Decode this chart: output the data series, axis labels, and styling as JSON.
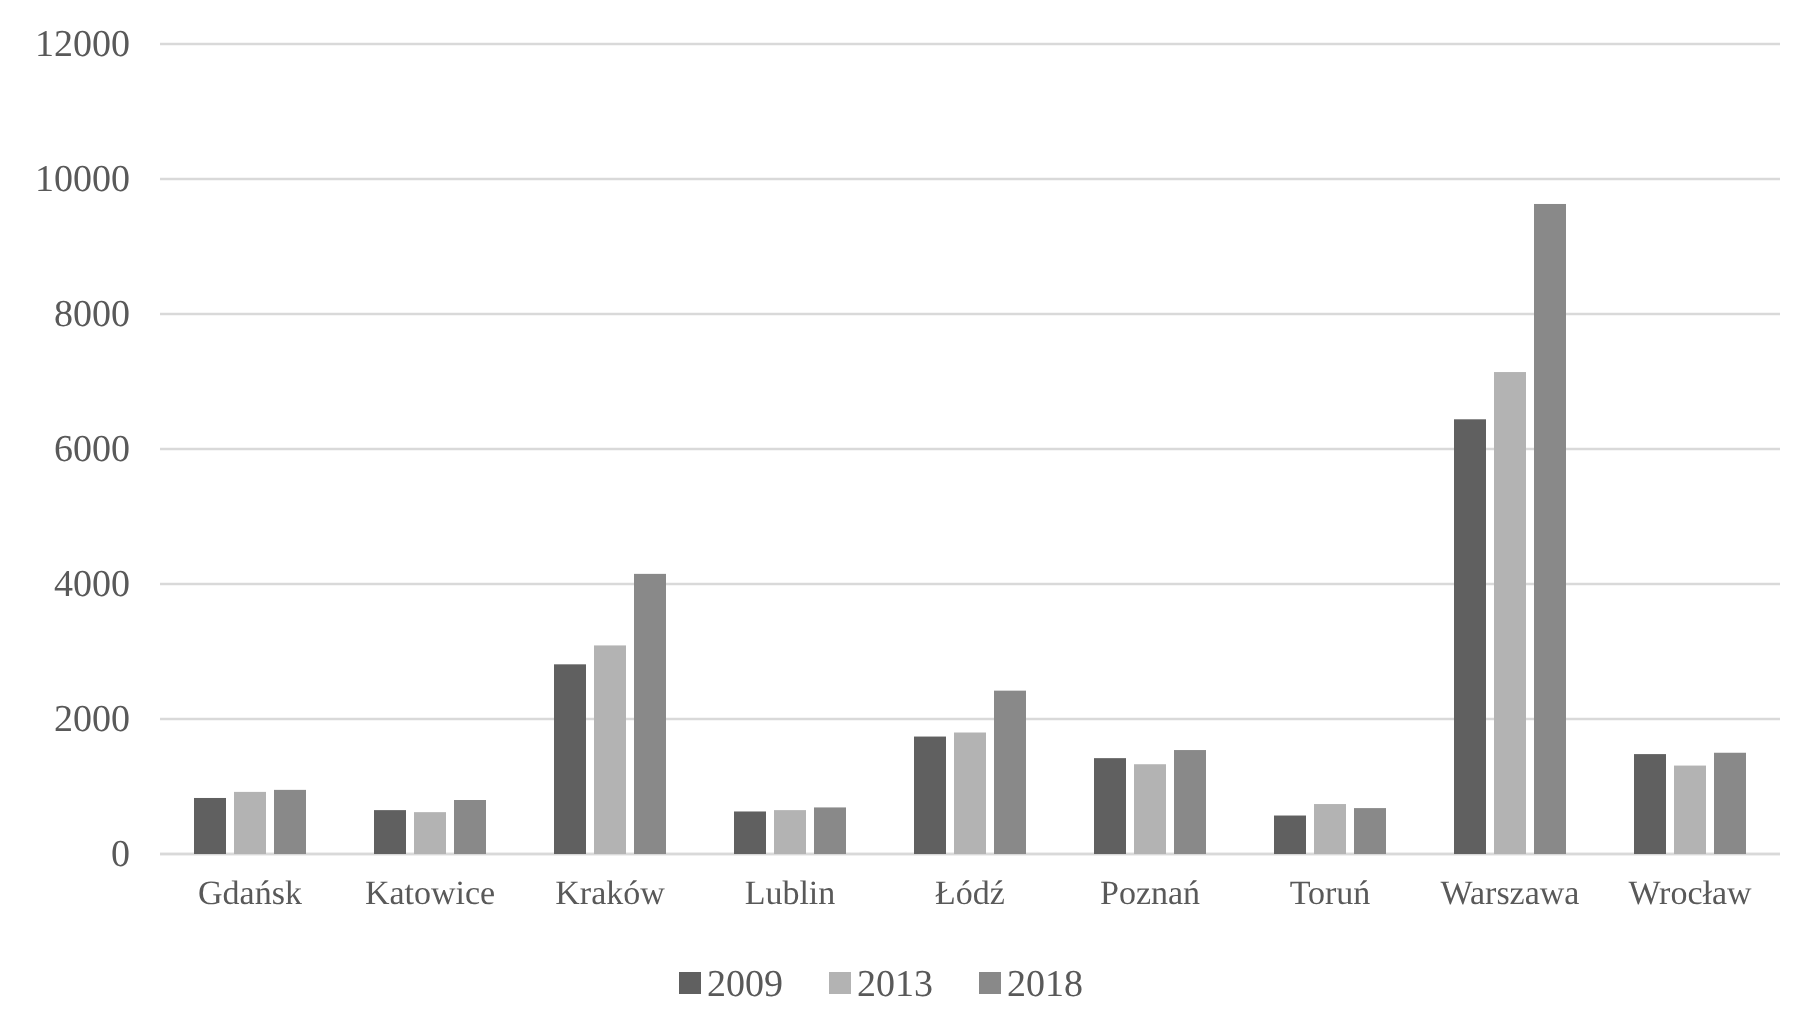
{
  "chart_data": {
    "type": "bar",
    "categories": [
      "Gdańsk",
      "Katowice",
      "Kraków",
      "Lublin",
      "Łódź",
      "Poznań",
      "Toruń",
      "Warszawa",
      "Wrocław"
    ],
    "series": [
      {
        "name": "2009",
        "color": "#606060",
        "values": [
          830,
          650,
          2810,
          630,
          1740,
          1420,
          570,
          6440,
          1480
        ]
      },
      {
        "name": "2013",
        "color": "#b3b3b3",
        "values": [
          920,
          620,
          3090,
          650,
          1800,
          1330,
          740,
          7140,
          1310
        ]
      },
      {
        "name": "2018",
        "color": "#898989",
        "values": [
          950,
          800,
          4150,
          690,
          2420,
          1540,
          680,
          9630,
          1500
        ]
      }
    ],
    "ylim": [
      0,
      12000
    ],
    "yticks": [
      0,
      2000,
      4000,
      6000,
      8000,
      10000,
      12000
    ],
    "grid": "y",
    "legend": "bottom"
  }
}
